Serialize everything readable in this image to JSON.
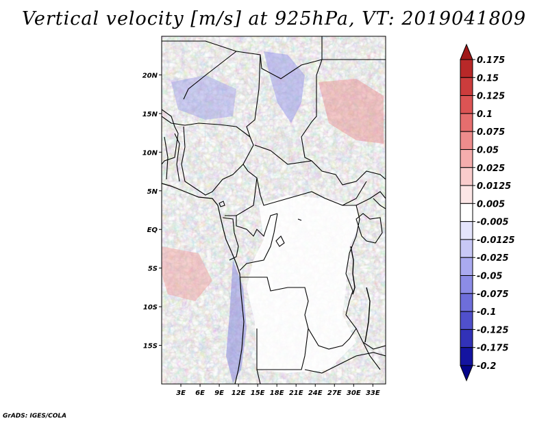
{
  "title": "Vertical velocity [m/s] at 925hPa, VT: 2019041809",
  "credit": "GrADS: IGES/COLA",
  "map": {
    "field": "Vertical velocity",
    "units": "m/s",
    "level": "925hPa",
    "valid_time": "2019041809",
    "lon_range": [
      0,
      35
    ],
    "lat_range": [
      -20,
      25
    ],
    "lat_ticks": [
      {
        "value": 20,
        "label": "20N"
      },
      {
        "value": 15,
        "label": "15N"
      },
      {
        "value": 10,
        "label": "10N"
      },
      {
        "value": 5,
        "label": "5N"
      },
      {
        "value": 0,
        "label": "EQ"
      },
      {
        "value": -5,
        "label": "5S"
      },
      {
        "value": -10,
        "label": "10S"
      },
      {
        "value": -15,
        "label": "15S"
      }
    ],
    "lon_ticks": [
      {
        "value": 3,
        "label": "3E"
      },
      {
        "value": 6,
        "label": "6E"
      },
      {
        "value": 9,
        "label": "9E"
      },
      {
        "value": 12,
        "label": "12E"
      },
      {
        "value": 15,
        "label": "15E"
      },
      {
        "value": 18,
        "label": "18E"
      },
      {
        "value": 21,
        "label": "21E"
      },
      {
        "value": 24,
        "label": "24E"
      },
      {
        "value": 27,
        "label": "27E"
      },
      {
        "value": 30,
        "label": "30E"
      },
      {
        "value": 33,
        "label": "33E"
      }
    ]
  },
  "colorbar": {
    "labels": [
      "0.175",
      "0.15",
      "0.125",
      "0.1",
      "0.075",
      "0.05",
      "0.025",
      "0.0125",
      "0.005",
      "-0.005",
      "-0.0125",
      "-0.025",
      "-0.05",
      "-0.075",
      "-0.1",
      "-0.125",
      "-0.175",
      "-0.2"
    ],
    "colors": [
      "#a01818",
      "#b82828",
      "#cc3c3c",
      "#dc5454",
      "#e66e6e",
      "#ee8c8c",
      "#f5adad",
      "#f9cccc",
      "#fce6e6",
      "#ffffff",
      "#e4e4fc",
      "#c8c8f6",
      "#aaaaf0",
      "#8c8ce6",
      "#6e6eda",
      "#5050cc",
      "#3232b8",
      "#1414a0",
      "#05058a"
    ]
  }
}
